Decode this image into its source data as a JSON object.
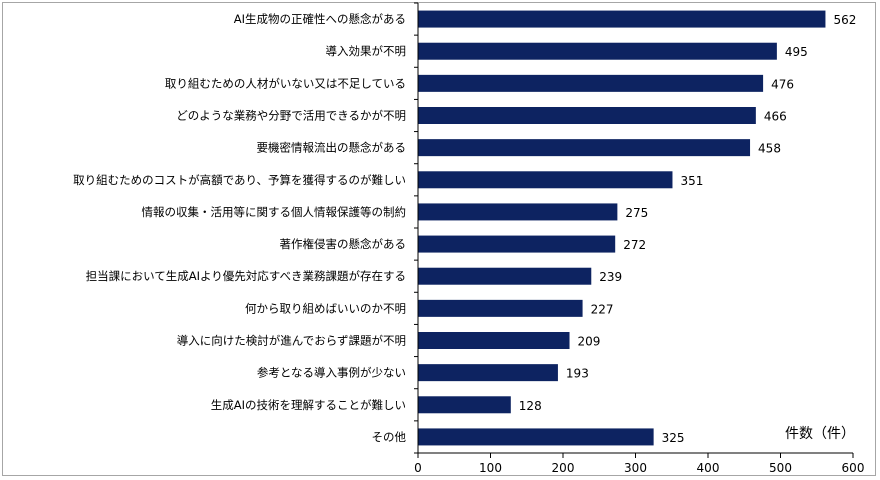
{
  "chart_data": {
    "type": "bar",
    "orientation": "horizontal",
    "title": "",
    "xlabel": "件数（件）",
    "ylabel": "",
    "xlim": [
      0,
      600
    ],
    "xticks": [
      0,
      100,
      200,
      300,
      400,
      500,
      600
    ],
    "grid": false,
    "bar_color": "#0d2361",
    "categories": [
      "AI生成物の正確性への懸念がある",
      "導入効果が不明",
      "取り組むための人材がいない又は不足している",
      "どのような業務や分野で活用できるかが不明",
      "要機密情報流出の懸念がある",
      "取り組むためのコストが高額であり、予算を獲得するのが難しい",
      "情報の収集・活用等に関する個人情報保護等の制約",
      "著作権侵害の懸念がある",
      "担当課において生成AIより優先対応すべき業務課題が存在する",
      "何から取り組めばいいのか不明",
      "導入に向けた検討が進んでおらず課題が不明",
      "参考となる導入事例が少ない",
      "生成AIの技術を理解することが難しい",
      "その他"
    ],
    "values": [
      562,
      495,
      476,
      466,
      458,
      351,
      275,
      272,
      239,
      227,
      209,
      193,
      128,
      325
    ]
  }
}
